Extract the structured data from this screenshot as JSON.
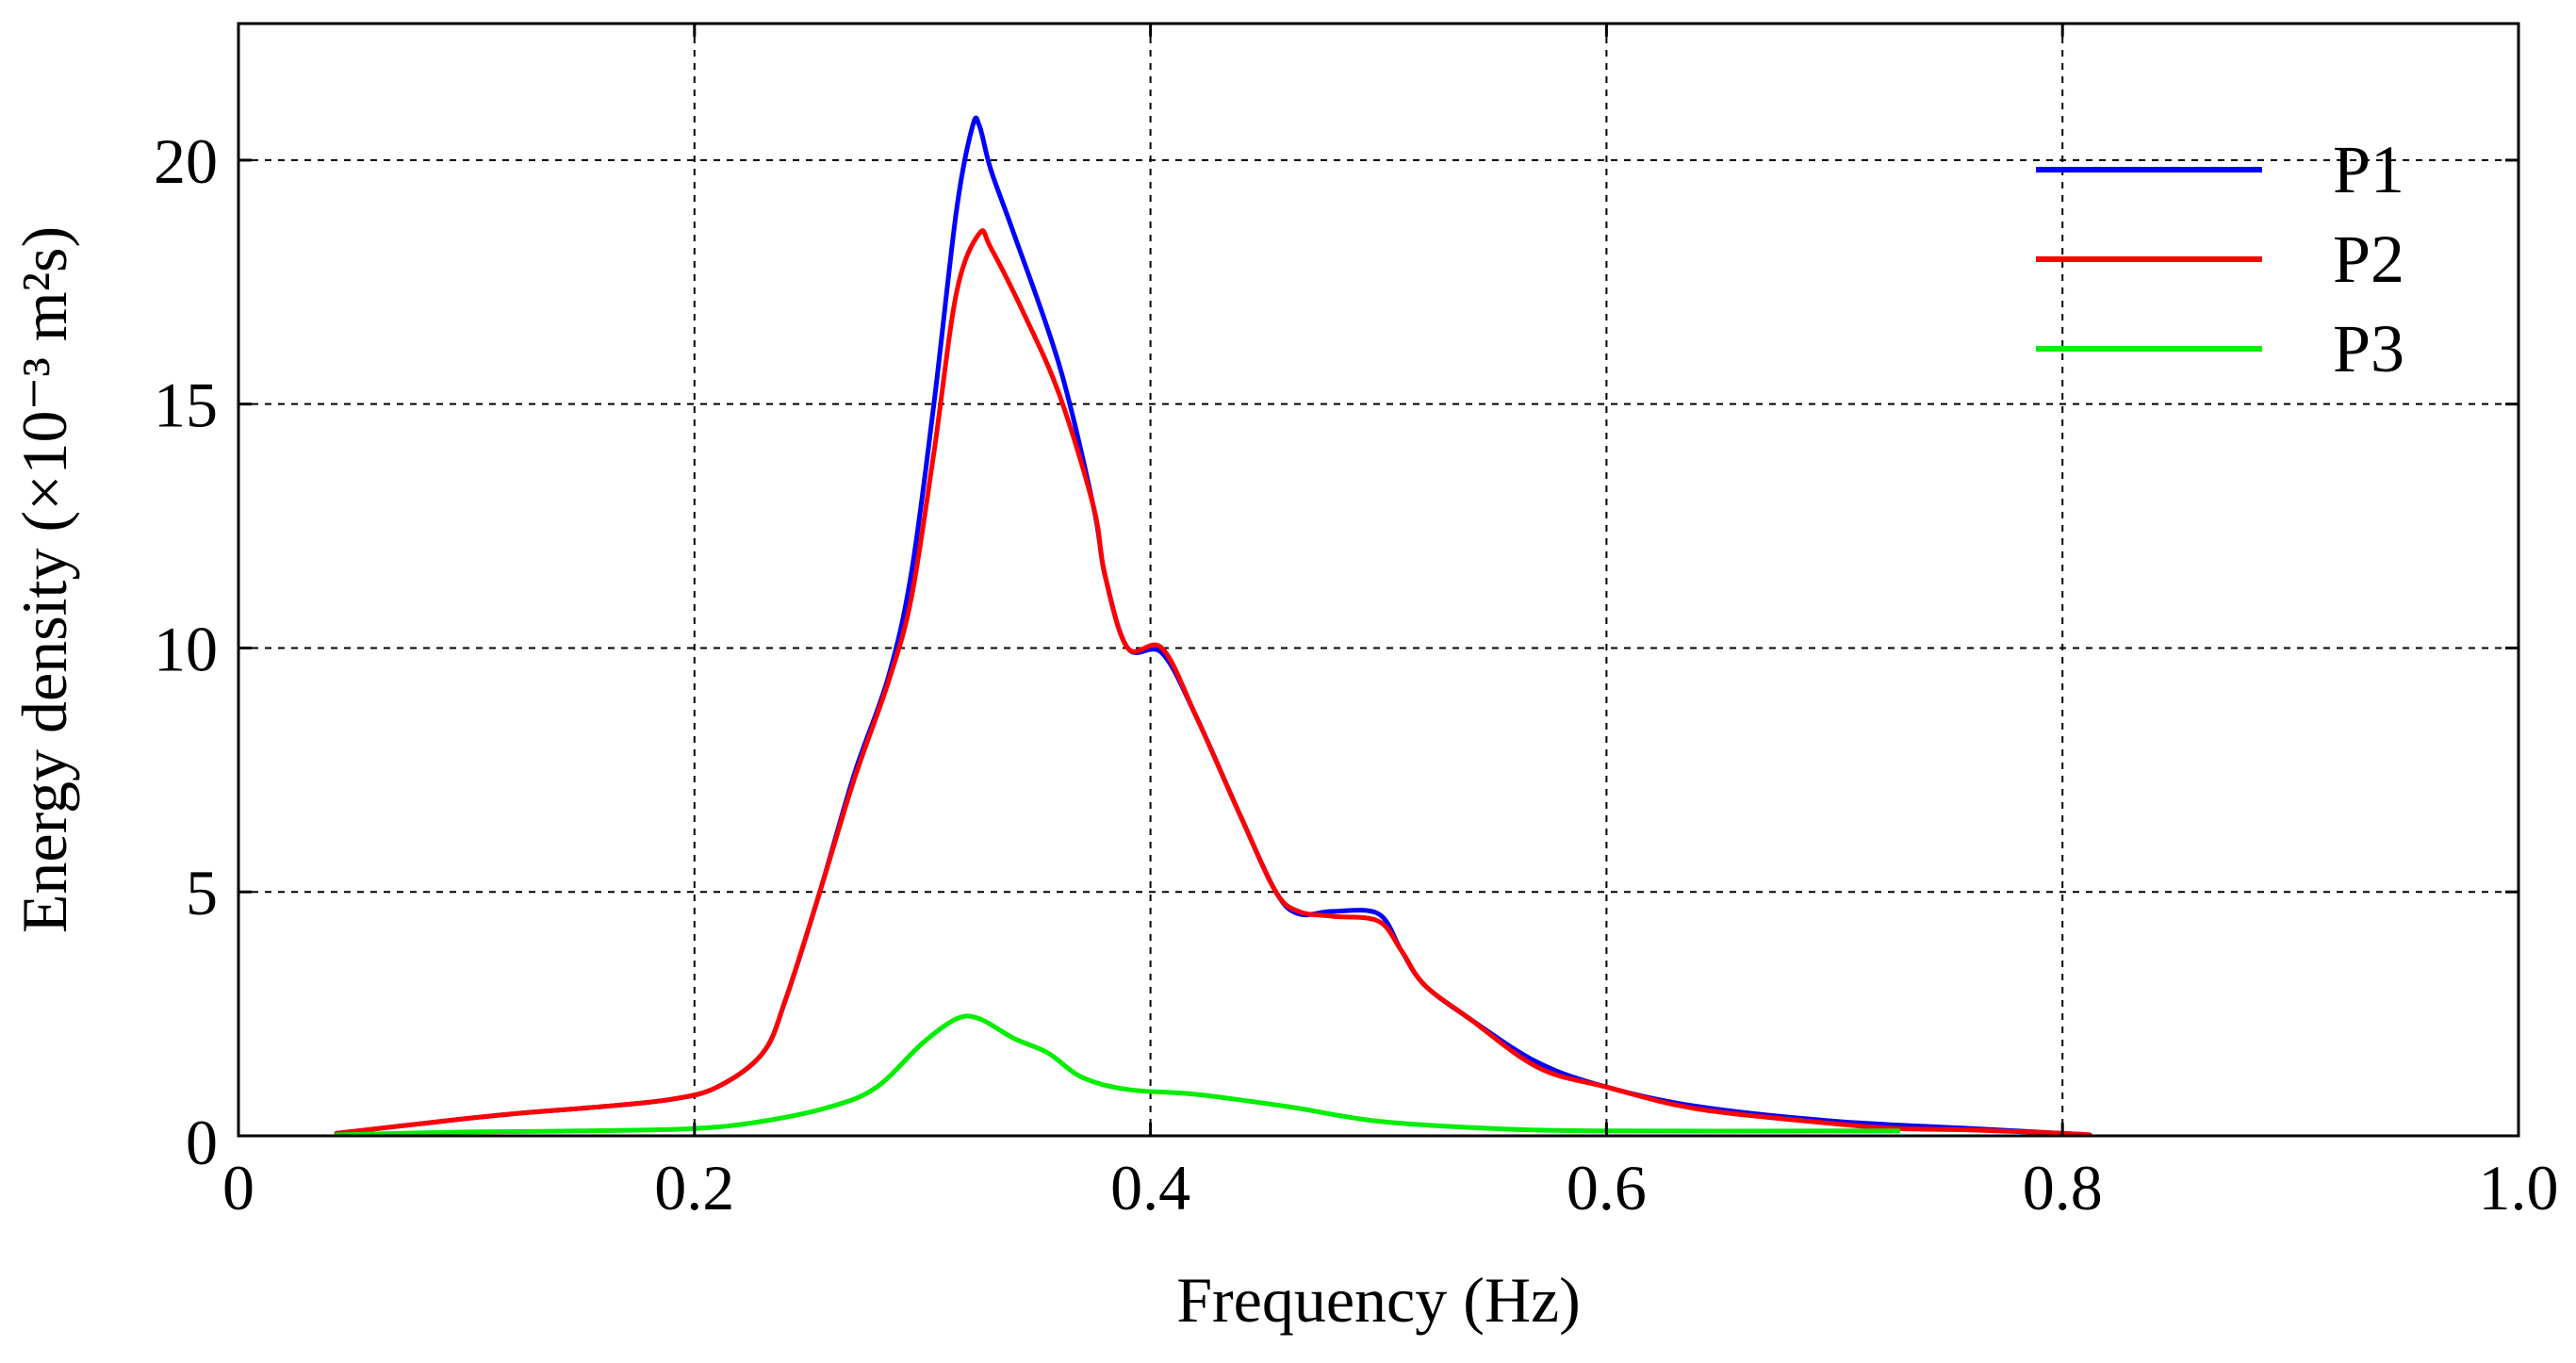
{
  "chart_data": {
    "type": "line",
    "xlabel": "Frequency (Hz)",
    "ylabel": "Energy density (×10⁻³ m²s)",
    "xlim": [
      0,
      1.0
    ],
    "ylim": [
      0,
      22.8
    ],
    "x_ticks": [
      0,
      0.2,
      0.4,
      0.6,
      0.8,
      1.0
    ],
    "x_tick_labels": [
      "0",
      "0.2",
      "0.4",
      "0.6",
      "0.8",
      "1.0"
    ],
    "y_ticks": [
      0,
      5,
      10,
      15,
      20
    ],
    "y_tick_labels": [
      "0",
      "5",
      "10",
      "15",
      "20"
    ],
    "grid": true,
    "grid_style": "dashed",
    "legend_position": "top-right",
    "series": [
      {
        "name": "P1",
        "color": "#0000ff",
        "points": [
          [
            0.043,
            0.05
          ],
          [
            0.08,
            0.25
          ],
          [
            0.12,
            0.45
          ],
          [
            0.16,
            0.6
          ],
          [
            0.19,
            0.75
          ],
          [
            0.21,
            1.0
          ],
          [
            0.23,
            1.7
          ],
          [
            0.24,
            2.8
          ],
          [
            0.255,
            5.0
          ],
          [
            0.27,
            7.4
          ],
          [
            0.285,
            9.4
          ],
          [
            0.295,
            11.5
          ],
          [
            0.305,
            15.0
          ],
          [
            0.315,
            19.0
          ],
          [
            0.322,
            20.7
          ],
          [
            0.325,
            20.7
          ],
          [
            0.33,
            19.8
          ],
          [
            0.34,
            18.5
          ],
          [
            0.36,
            15.8
          ],
          [
            0.375,
            12.9
          ],
          [
            0.38,
            11.5
          ],
          [
            0.39,
            10.0
          ],
          [
            0.405,
            9.9
          ],
          [
            0.42,
            8.6
          ],
          [
            0.44,
            6.5
          ],
          [
            0.455,
            5.0
          ],
          [
            0.465,
            4.55
          ],
          [
            0.48,
            4.6
          ],
          [
            0.5,
            4.55
          ],
          [
            0.51,
            3.8
          ],
          [
            0.52,
            3.1
          ],
          [
            0.54,
            2.4
          ],
          [
            0.57,
            1.5
          ],
          [
            0.6,
            1.0
          ],
          [
            0.64,
            0.6
          ],
          [
            0.7,
            0.3
          ],
          [
            0.76,
            0.15
          ],
          [
            0.8,
            0.05
          ],
          [
            0.812,
            0.02
          ]
        ]
      },
      {
        "name": "P2",
        "color": "#ff0000",
        "points": [
          [
            0.043,
            0.05
          ],
          [
            0.08,
            0.25
          ],
          [
            0.12,
            0.45
          ],
          [
            0.16,
            0.6
          ],
          [
            0.19,
            0.75
          ],
          [
            0.21,
            1.0
          ],
          [
            0.23,
            1.7
          ],
          [
            0.24,
            2.8
          ],
          [
            0.255,
            5.0
          ],
          [
            0.27,
            7.3
          ],
          [
            0.285,
            9.3
          ],
          [
            0.295,
            11.0
          ],
          [
            0.305,
            14.0
          ],
          [
            0.315,
            17.3
          ],
          [
            0.325,
            18.5
          ],
          [
            0.33,
            18.2
          ],
          [
            0.345,
            16.8
          ],
          [
            0.36,
            15.2
          ],
          [
            0.375,
            12.9
          ],
          [
            0.38,
            11.5
          ],
          [
            0.39,
            10.0
          ],
          [
            0.405,
            10.0
          ],
          [
            0.42,
            8.6
          ],
          [
            0.44,
            6.5
          ],
          [
            0.455,
            5.0
          ],
          [
            0.465,
            4.6
          ],
          [
            0.48,
            4.5
          ],
          [
            0.5,
            4.4
          ],
          [
            0.51,
            3.8
          ],
          [
            0.52,
            3.1
          ],
          [
            0.54,
            2.4
          ],
          [
            0.57,
            1.4
          ],
          [
            0.6,
            1.0
          ],
          [
            0.64,
            0.55
          ],
          [
            0.7,
            0.25
          ],
          [
            0.728,
            0.15
          ],
          [
            0.76,
            0.12
          ],
          [
            0.8,
            0.05
          ],
          [
            0.812,
            0.02
          ]
        ]
      },
      {
        "name": "P3",
        "color": "#00ee00",
        "points": [
          [
            0.043,
            0.02
          ],
          [
            0.1,
            0.08
          ],
          [
            0.15,
            0.1
          ],
          [
            0.2,
            0.15
          ],
          [
            0.23,
            0.3
          ],
          [
            0.26,
            0.6
          ],
          [
            0.28,
            1.0
          ],
          [
            0.3,
            1.9
          ],
          [
            0.315,
            2.4
          ],
          [
            0.325,
            2.4
          ],
          [
            0.34,
            2.0
          ],
          [
            0.355,
            1.7
          ],
          [
            0.37,
            1.2
          ],
          [
            0.39,
            0.95
          ],
          [
            0.42,
            0.85
          ],
          [
            0.46,
            0.6
          ],
          [
            0.5,
            0.3
          ],
          [
            0.55,
            0.15
          ],
          [
            0.6,
            0.1
          ],
          [
            0.7,
            0.1
          ],
          [
            0.728,
            0.1
          ]
        ]
      }
    ]
  }
}
